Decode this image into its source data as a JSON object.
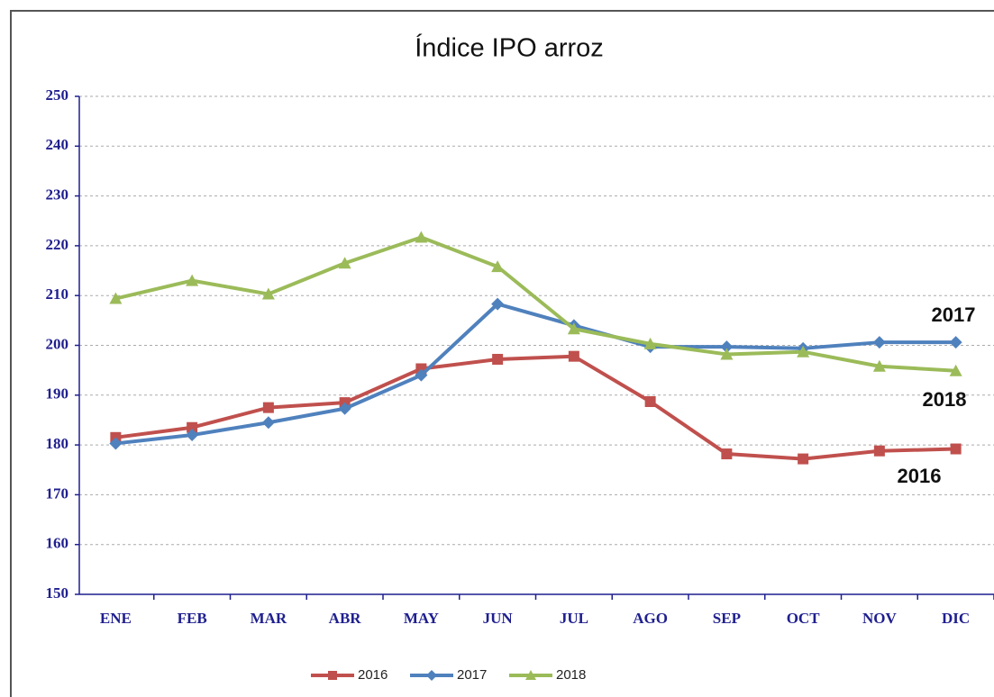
{
  "chart_data": {
    "type": "line",
    "title": "Índice IPO arroz",
    "categories": [
      "ENE",
      "FEB",
      "MAR",
      "ABR",
      "MAY",
      "JUN",
      "JUL",
      "AGO",
      "SEP",
      "OCT",
      "NOV",
      "DIC"
    ],
    "series": [
      {
        "name": "2016",
        "color": "#c0504d",
        "marker": "square",
        "values": [
          181.5,
          183.5,
          187.5,
          188.5,
          195.3,
          197.2,
          197.8,
          188.7,
          178.2,
          177.2,
          178.8,
          179.2
        ]
      },
      {
        "name": "2017",
        "color": "#4f81bd",
        "marker": "diamond",
        "values": [
          180.3,
          182,
          184.5,
          187.3,
          194,
          208.3,
          204,
          199.7,
          199.7,
          199.4,
          200.6,
          200.6
        ]
      },
      {
        "name": "2018",
        "color": "#9bbb59",
        "marker": "triangle",
        "values": [
          209.4,
          213,
          210.3,
          216.5,
          221.7,
          215.8,
          203.3,
          200.3,
          198.2,
          198.7,
          195.8,
          194.9
        ]
      }
    ],
    "annotations": [
      "2017",
      "2018",
      "2016"
    ],
    "ylim": [
      150,
      250
    ],
    "yticks": [
      150,
      160,
      170,
      180,
      190,
      200,
      210,
      220,
      230,
      240,
      250
    ],
    "grid": true,
    "legend": "bottom"
  }
}
